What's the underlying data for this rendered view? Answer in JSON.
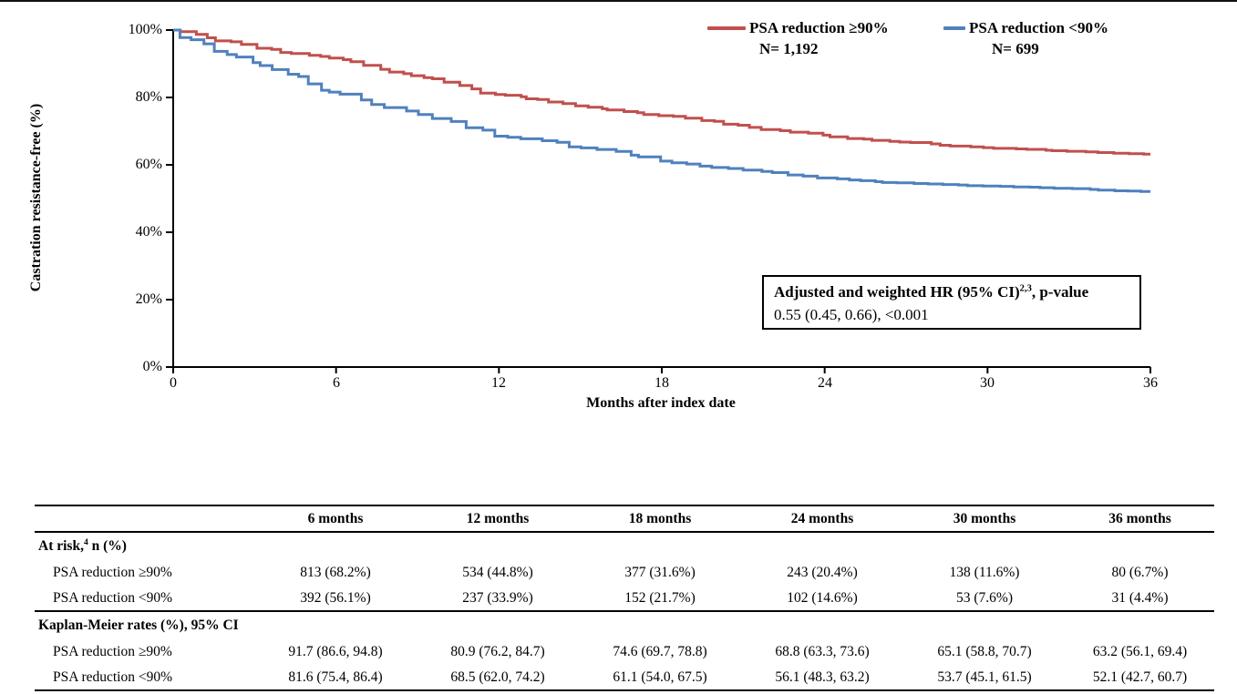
{
  "chart_data": {
    "type": "line",
    "subtype": "kaplan-meier-step",
    "title": "",
    "xlabel": "Months after index date",
    "ylabel": "Castration resistance-free (%)",
    "xlim": [
      0,
      36
    ],
    "ylim": [
      0,
      100
    ],
    "grid": false,
    "legend_position": "top-right",
    "x": [
      0,
      6,
      12,
      18,
      24,
      30,
      36
    ],
    "xtick_labels": [
      "0",
      "6",
      "12",
      "18",
      "24",
      "30",
      "36"
    ],
    "ytick_labels": [
      "0%",
      "20%",
      "40%",
      "60%",
      "80%",
      "100%"
    ],
    "series": [
      {
        "name": "PSA reduction ≥90%",
        "n_label": "N= 1,192",
        "color": "#C0504D",
        "values": [
          100,
          91.7,
          80.9,
          74.6,
          68.8,
          65.1,
          63.2
        ]
      },
      {
        "name": "PSA reduction <90%",
        "n_label": "N= 699",
        "color": "#4F81BD",
        "values": [
          100,
          81.6,
          68.5,
          61.1,
          56.1,
          53.7,
          52.1
        ]
      }
    ],
    "annotation": {
      "line1_prefix": "Adjusted and weighted HR (95% CI)",
      "line1_sup": "2,3",
      "line1_suffix": ", p-value",
      "line2": "0.55 (0.45, 0.66), <0.001"
    }
  },
  "table": {
    "col_headers": [
      "6 months",
      "12 months",
      "18 months",
      "24 months",
      "30 months",
      "36 months"
    ],
    "sections": [
      {
        "title_prefix": "At risk,",
        "title_sup": "4",
        "title_suffix": " n (%)",
        "rows": [
          {
            "label": "PSA reduction ≥90%",
            "values": [
              "813 (68.2%)",
              "534 (44.8%)",
              "377 (31.6%)",
              "243 (20.4%)",
              "138 (11.6%)",
              "80 (6.7%)"
            ]
          },
          {
            "label": "PSA reduction <90%",
            "values": [
              "392 (56.1%)",
              "237 (33.9%)",
              "152 (21.7%)",
              "102 (14.6%)",
              "53 (7.6%)",
              "31 (4.4%)"
            ]
          }
        ]
      },
      {
        "title_prefix": "Kaplan-Meier rates (%), 95% CI",
        "title_sup": "",
        "title_suffix": "",
        "rows": [
          {
            "label": "PSA reduction ≥90%",
            "values": [
              "91.7 (86.6, 94.8)",
              "80.9 (76.2, 84.7)",
              "74.6 (69.7, 78.8)",
              "68.8 (63.3, 73.6)",
              "65.1 (58.8, 70.7)",
              "63.2 (56.1, 69.4)"
            ]
          },
          {
            "label": "PSA reduction <90%",
            "values": [
              "81.6 (75.4, 86.4)",
              "68.5 (62.0, 74.2)",
              "61.1 (54.0, 67.5)",
              "56.1 (48.3, 63.2)",
              "53.7 (45.1, 61.5)",
              "52.1 (42.7, 60.7)"
            ]
          }
        ]
      }
    ]
  }
}
